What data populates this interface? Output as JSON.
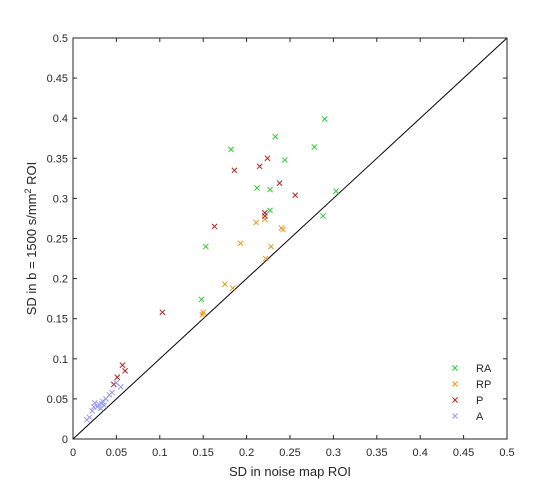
{
  "chart_data": {
    "type": "scatter",
    "xlabel": "SD in noise map ROI",
    "ylabel_main": "SD in b = 1500 s/mm",
    "ylabel_sup": "2",
    "ylabel_tail": " ROI",
    "xlim": [
      0,
      0.5
    ],
    "ylim": [
      0,
      0.5
    ],
    "xticks": [
      "0",
      "0.05",
      "0.1",
      "0.15",
      "0.2",
      "0.25",
      "0.3",
      "0.35",
      "0.4",
      "0.45",
      "0.5"
    ],
    "yticks": [
      "0",
      "0.05",
      "0.1",
      "0.15",
      "0.2",
      "0.25",
      "0.3",
      "0.35",
      "0.4",
      "0.45",
      "0.5"
    ],
    "reference_line": "y = x",
    "grid": false,
    "marker": "x",
    "legend_position": "bottom-right",
    "series": [
      {
        "name": "RA",
        "color": "#2ecc2e",
        "points": [
          [
            0.29,
            0.399
          ],
          [
            0.233,
            0.377
          ],
          [
            0.278,
            0.364
          ],
          [
            0.182,
            0.361
          ],
          [
            0.244,
            0.348
          ],
          [
            0.212,
            0.313
          ],
          [
            0.227,
            0.311
          ],
          [
            0.303,
            0.309
          ],
          [
            0.227,
            0.285
          ],
          [
            0.288,
            0.278
          ],
          [
            0.153,
            0.24
          ],
          [
            0.148,
            0.174
          ]
        ]
      },
      {
        "name": "RP",
        "color": "#e69a1f",
        "points": [
          [
            0.221,
            0.274
          ],
          [
            0.211,
            0.27
          ],
          [
            0.24,
            0.263
          ],
          [
            0.242,
            0.261
          ],
          [
            0.193,
            0.244
          ],
          [
            0.228,
            0.24
          ],
          [
            0.222,
            0.225
          ],
          [
            0.175,
            0.193
          ],
          [
            0.184,
            0.188
          ],
          [
            0.15,
            0.158
          ],
          [
            0.149,
            0.155
          ]
        ]
      },
      {
        "name": "P",
        "color": "#b02020",
        "points": [
          [
            0.224,
            0.35
          ],
          [
            0.215,
            0.34
          ],
          [
            0.186,
            0.335
          ],
          [
            0.238,
            0.319
          ],
          [
            0.256,
            0.304
          ],
          [
            0.221,
            0.282
          ],
          [
            0.221,
            0.278
          ],
          [
            0.163,
            0.265
          ],
          [
            0.103,
            0.158
          ],
          [
            0.057,
            0.092
          ],
          [
            0.06,
            0.085
          ],
          [
            0.051,
            0.077
          ],
          [
            0.047,
            0.068
          ]
        ]
      },
      {
        "name": "A",
        "color": "#9a9af0",
        "points": [
          [
            0.025,
            0.045
          ],
          [
            0.03,
            0.043
          ],
          [
            0.034,
            0.047
          ],
          [
            0.038,
            0.05
          ],
          [
            0.028,
            0.04
          ],
          [
            0.032,
            0.038
          ],
          [
            0.036,
            0.042
          ],
          [
            0.042,
            0.055
          ],
          [
            0.022,
            0.035
          ],
          [
            0.024,
            0.04
          ],
          [
            0.019,
            0.027
          ],
          [
            0.016,
            0.024
          ],
          [
            0.045,
            0.058
          ],
          [
            0.055,
            0.065
          ],
          [
            0.05,
            0.07
          ],
          [
            0.033,
            0.044
          ]
        ]
      }
    ]
  }
}
